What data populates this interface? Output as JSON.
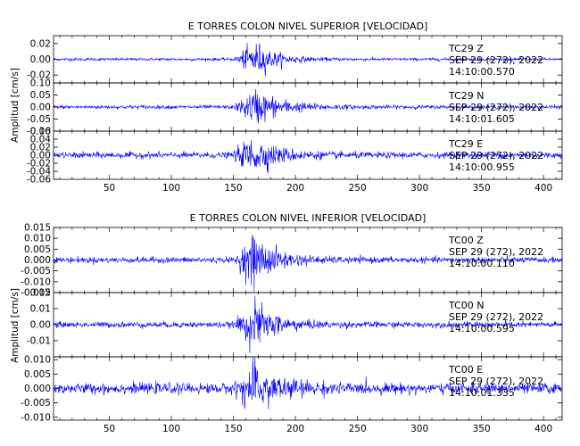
{
  "page": {
    "background": "#ffffff",
    "trace_color": "#0000ff",
    "axis_color": "#000000"
  },
  "chart_data": [
    {
      "type": "line",
      "title": "E TORRES COLON NIVEL SUPERIOR [VELOCIDAD]",
      "ylabel": "Amplitud [cm/s]",
      "xlim": [
        5,
        415
      ],
      "xticks": [
        "50",
        "100",
        "150",
        "200",
        "250",
        "300",
        "350",
        "400"
      ],
      "series": [
        {
          "station": "TC29",
          "component": "Z",
          "date": "SEP 29 (272), 2022",
          "time": "14:10:00.570",
          "ylim": [
            -0.03,
            0.03
          ],
          "yticks": [
            -0.02,
            0.0,
            0.02
          ],
          "ytick_labels": [
            "-0.02",
            "0.00",
            "0.02"
          ],
          "noise": 0.0012,
          "event_peak": 0.026,
          "event_start": 150,
          "event_peak_at": 168,
          "decay": 16
        },
        {
          "station": "TC29",
          "component": "N",
          "date": "SEP 29 (272), 2022",
          "time": "14:10:01.605",
          "ylim": [
            -0.1,
            0.1
          ],
          "yticks": [
            -0.1,
            -0.05,
            0.0,
            0.05,
            0.1
          ],
          "ytick_labels": [
            "-0.10",
            "-0.05",
            "0.00",
            "0.05",
            "0.10"
          ],
          "noise": 0.005,
          "event_peak": 0.085,
          "event_start": 150,
          "event_peak_at": 168,
          "decay": 22
        },
        {
          "station": "TC29",
          "component": "E",
          "date": "SEP 29 (272), 2022",
          "time": "14:10:00.955",
          "ylim": [
            -0.06,
            0.06
          ],
          "yticks": [
            -0.06,
            -0.04,
            -0.02,
            0.0,
            0.02,
            0.04,
            0.06
          ],
          "ytick_labels": [
            "-0.06",
            "-0.04",
            "-0.02",
            "0.00",
            "0.02",
            "0.04",
            "0.06"
          ],
          "noise": 0.005,
          "event_peak": 0.05,
          "event_start": 148,
          "event_peak_at": 166,
          "decay": 20
        }
      ]
    },
    {
      "type": "line",
      "title": "E TORRES COLON NIVEL INFERIOR [VELOCIDAD]",
      "ylabel": "Amplitud [cm/s]",
      "xlim": [
        5,
        415
      ],
      "xticks": [
        "50",
        "100",
        "150",
        "200",
        "250",
        "300",
        "350",
        "400"
      ],
      "series": [
        {
          "station": "TC00",
          "component": "Z",
          "date": "SEP 29 (272), 2022",
          "time": "14:10:00.110",
          "ylim": [
            -0.015,
            0.015
          ],
          "yticks": [
            -0.015,
            -0.01,
            -0.005,
            0.0,
            0.005,
            0.01,
            0.015
          ],
          "ytick_labels": [
            "-0.015",
            "-0.010",
            "-0.005",
            "0.000",
            "0.005",
            "0.010",
            "0.015"
          ],
          "noise": 0.0009,
          "event_peak": 0.013,
          "event_start": 150,
          "event_peak_at": 167,
          "decay": 18
        },
        {
          "station": "TC00",
          "component": "N",
          "date": "SEP 29 (272), 2022",
          "time": "14:10:00.595",
          "ylim": [
            -0.02,
            0.02
          ],
          "yticks": [
            -0.01,
            0.0,
            0.01,
            0.02
          ],
          "ytick_labels": [
            "-0.01",
            "0.00",
            "0.01",
            "0.02"
          ],
          "noise": 0.0012,
          "event_peak": 0.016,
          "event_start": 150,
          "event_peak_at": 167,
          "decay": 18
        },
        {
          "station": "TC00",
          "component": "E",
          "date": "SEP 29 (272), 2022",
          "time": "14:10:01.335",
          "ylim": [
            -0.011,
            0.011
          ],
          "yticks": [
            -0.01,
            -0.005,
            0.0,
            0.005,
            0.01
          ],
          "ytick_labels": [
            "-0.010",
            "-0.005",
            "0.000",
            "0.005",
            "0.010"
          ],
          "noise": 0.0012,
          "event_peak": 0.0085,
          "event_start": 148,
          "event_peak_at": 167,
          "decay": 22
        }
      ]
    }
  ]
}
